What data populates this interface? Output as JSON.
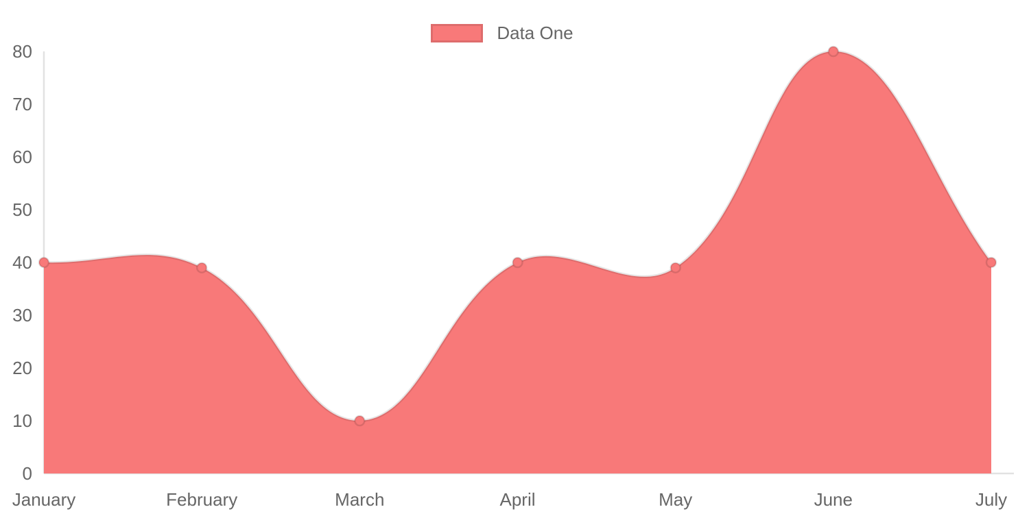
{
  "legend": {
    "items": [
      {
        "label": "Data One",
        "swatch_color": "#f87979",
        "swatch_border_color": "rgba(0,0,0,0.10)"
      }
    ]
  },
  "chart_data": {
    "type": "area",
    "title": "",
    "xlabel": "",
    "ylabel": "",
    "categories": [
      "January",
      "February",
      "March",
      "April",
      "May",
      "June",
      "July"
    ],
    "series": [
      {
        "name": "Data One",
        "values": [
          40,
          39,
          10,
          40,
          39,
          80,
          40
        ],
        "fill_color": "#f87979",
        "line_color": "rgba(0,0,0,0.10)",
        "point_fill_color": "#f87979",
        "point_border_color": "rgba(0,0,0,0.12)"
      }
    ],
    "ylim": [
      0,
      80
    ],
    "y_ticks": [
      0,
      10,
      20,
      30,
      40,
      50,
      60,
      70,
      80
    ],
    "grid": false,
    "legend_position": "top",
    "line_tension": 0.4,
    "axis_line_color": "#e2e2e2",
    "tick_label_color": "#666666"
  }
}
